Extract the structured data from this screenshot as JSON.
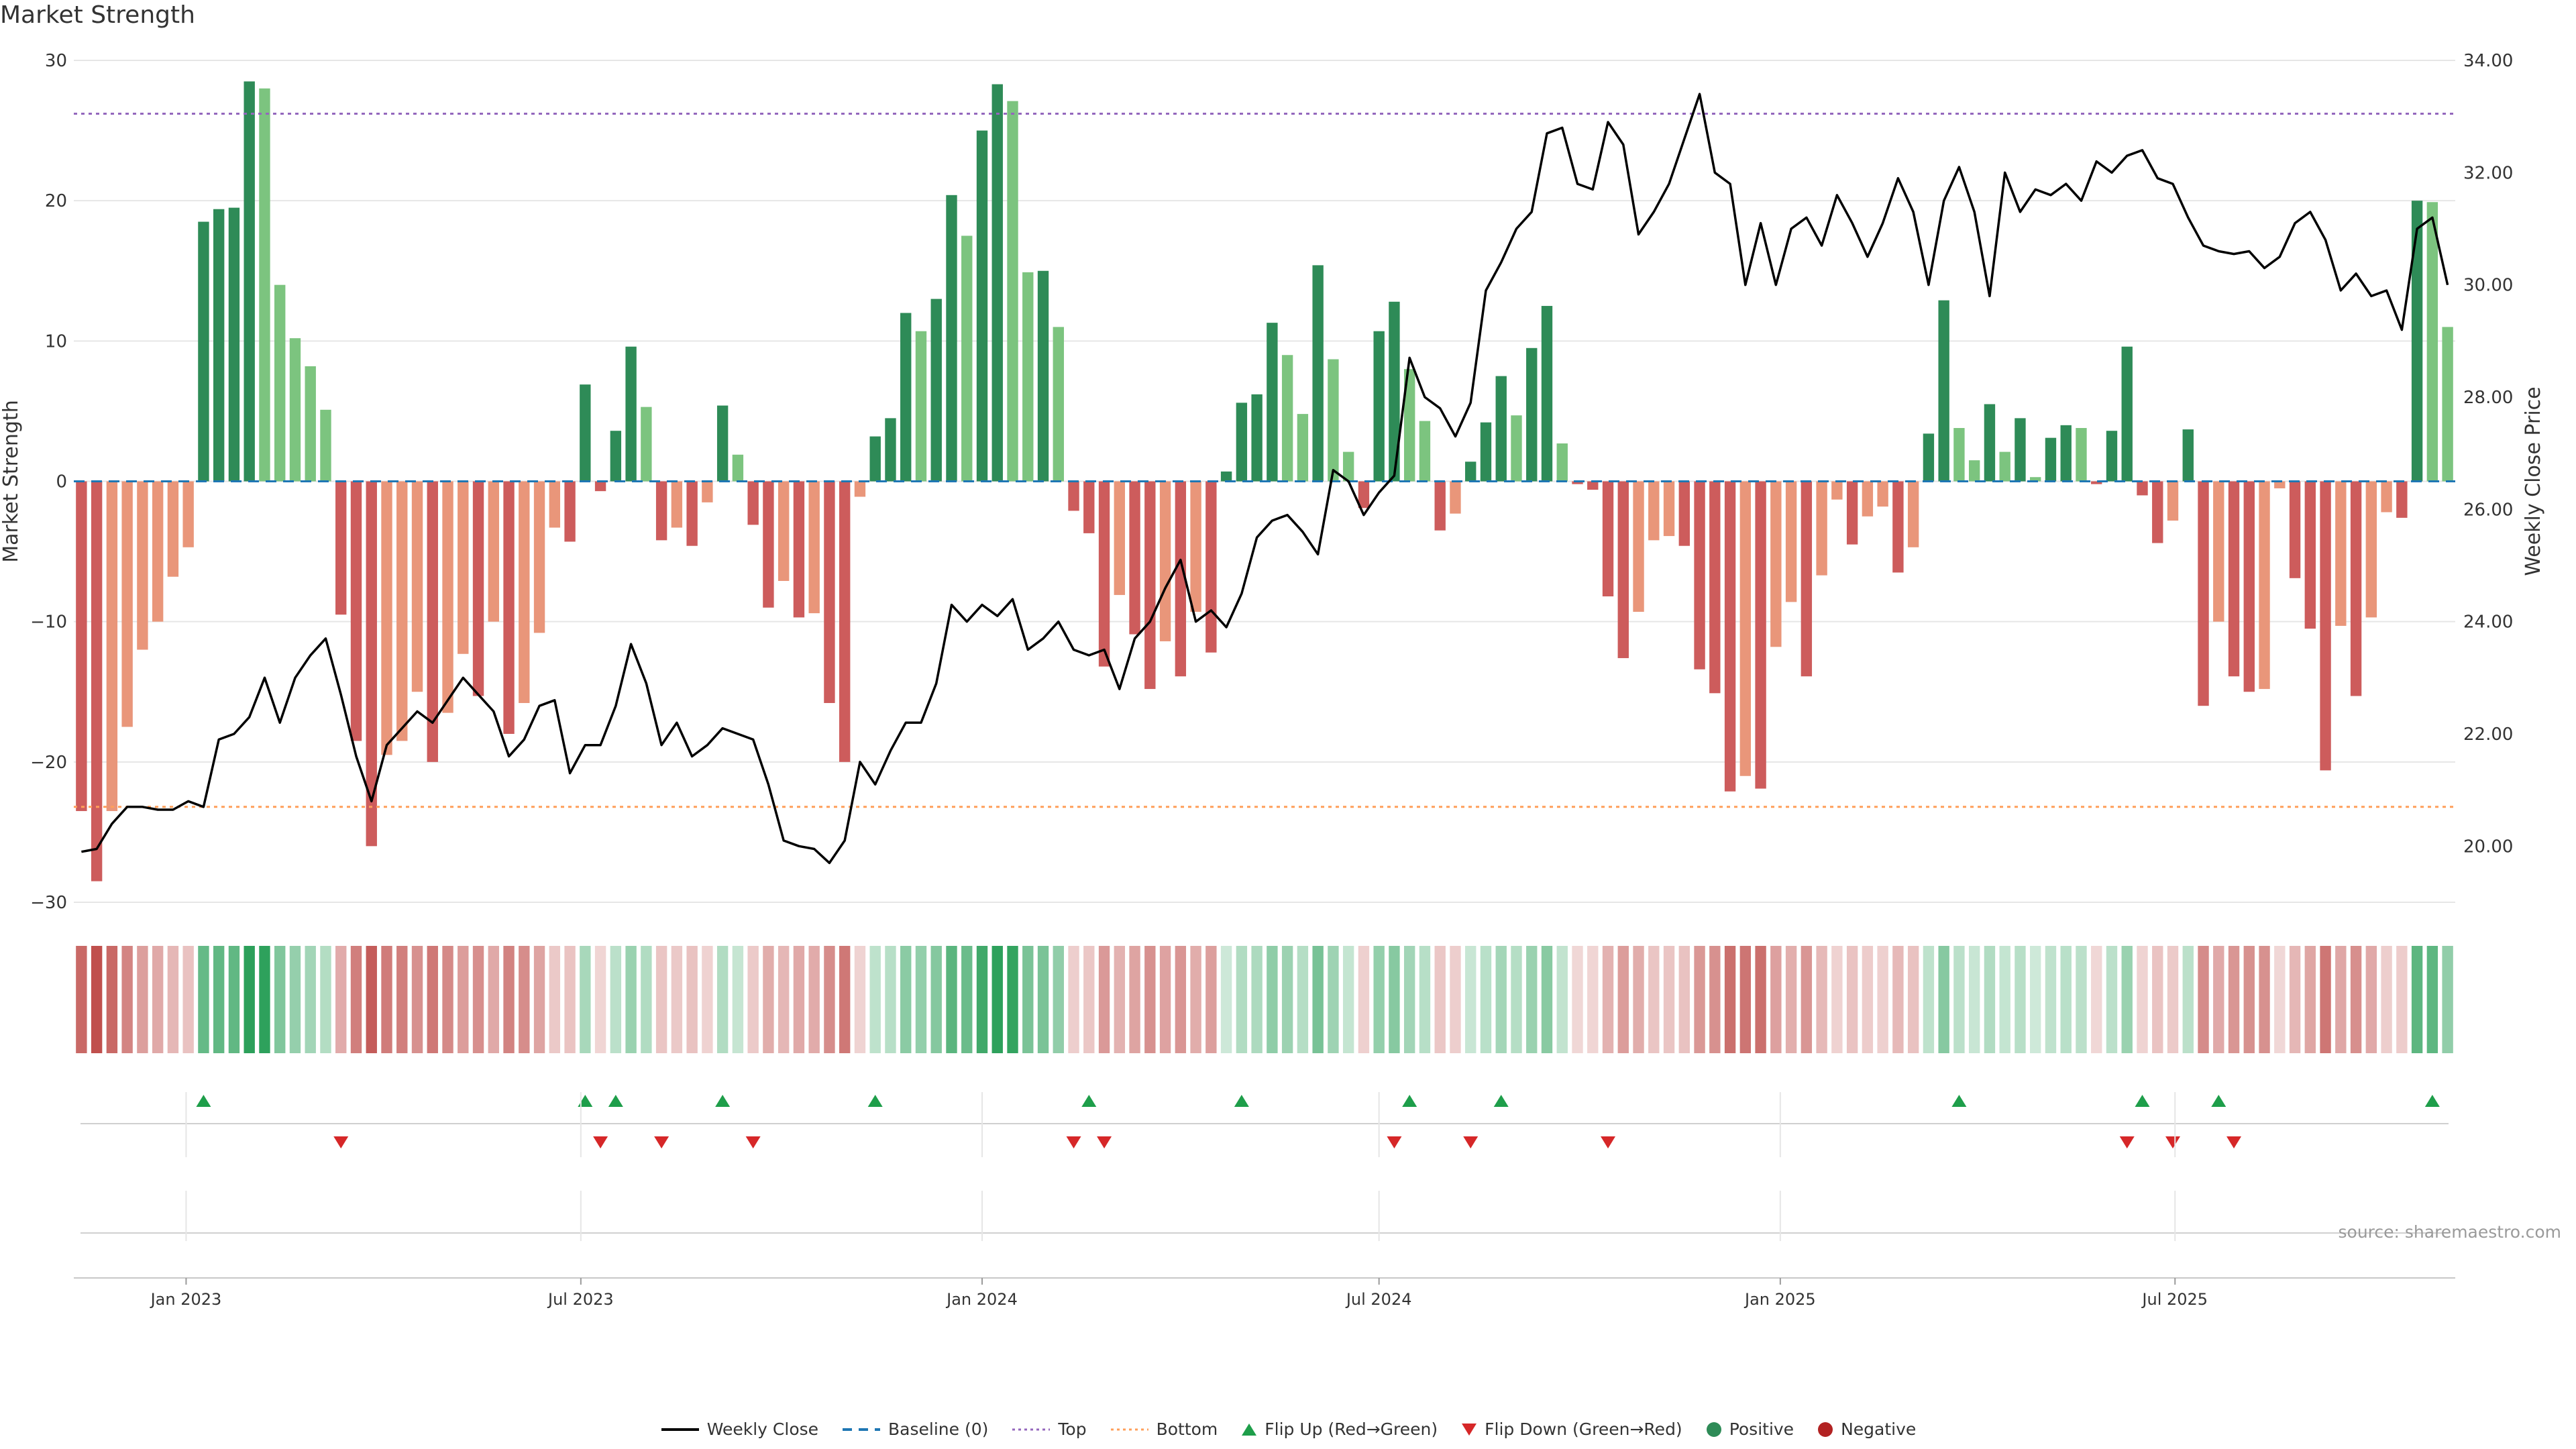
{
  "title": "Market Strength",
  "source_text": "source: sharemaestro.com",
  "colors": {
    "pos_dark": "#2e8b57",
    "pos_light": "#7cc47f",
    "neg_dark": "#cd5c5c",
    "neg_light": "#e9967a",
    "price_line": "#000000",
    "baseline": "#1f77b4",
    "top": "#9467bd",
    "bottom": "#ff9f5a",
    "flip_up": "#1e9e4a",
    "flip_down": "#d62728",
    "grid": "#e6e6e6",
    "heat_pos": "#2ca05a",
    "heat_neg": "#c0504d"
  },
  "chart_data": {
    "type": "bar",
    "title": "Market Strength",
    "ylabel": "Market Strength",
    "y2label": "Weekly Close Price",
    "ylim": [
      -30,
      30
    ],
    "y2lim": [
      19.0,
      34.0
    ],
    "y_ticks": [
      30,
      20,
      10,
      0,
      -10,
      -20,
      -30
    ],
    "y_tick_labels": [
      "30",
      "20",
      "10",
      "0",
      "−10",
      "−20",
      "−30"
    ],
    "y2_ticks": [
      34.0,
      32.0,
      30.0,
      28.0,
      26.0,
      24.0,
      22.0,
      20.0
    ],
    "y2_tick_labels": [
      "34.00",
      "32.00",
      "30.00",
      "28.00",
      "26.00",
      "24.00",
      "22.00",
      "20.00"
    ],
    "x_start": "2022-11-14",
    "x_ticks": [
      "2023-01-01",
      "2023-07-01",
      "2024-01-01",
      "2024-07-01",
      "2025-01-01",
      "2025-07-01"
    ],
    "x_tick_labels": [
      "Jan 2023",
      "Jul 2023",
      "Jan 2024",
      "Jul 2024",
      "Jan 2025",
      "Jul 2025"
    ],
    "top_line": 26.2,
    "bottom_line": -23.2,
    "series": [
      {
        "name": "Market Strength",
        "values": [
          -23.5,
          -28.5,
          -23.5,
          -17.5,
          -12,
          -10,
          -6.8,
          -4.7,
          18.5,
          19.4,
          19.5,
          28.5,
          28,
          14,
          10.2,
          8.2,
          5.1,
          -9.5,
          -18.5,
          -26,
          -19.5,
          -18.5,
          -15,
          -20,
          -16.5,
          -12.3,
          -15.3,
          -10,
          -18,
          -15.8,
          -10.8,
          -3.3,
          -4.3,
          6.9,
          -0.7,
          3.6,
          9.6,
          5.3,
          -4.2,
          -3.3,
          -4.6,
          -1.5,
          5.4,
          1.9,
          -3.1,
          -9,
          -7.1,
          -9.7,
          -9.4,
          -15.8,
          -20,
          -1.1,
          3.2,
          4.5,
          12,
          10.7,
          13,
          20.4,
          17.5,
          25,
          28.3,
          27.1,
          14.9,
          15,
          11,
          -2.1,
          -3.7,
          -13.2,
          -8.1,
          -10.9,
          -14.8,
          -11.4,
          -13.9,
          -9.3,
          -12.2,
          0.7,
          5.6,
          6.2,
          11.3,
          9,
          4.8,
          15.4,
          8.7,
          2.1,
          -1.9,
          10.7,
          12.8,
          8,
          4.3,
          -3.5,
          -2.3,
          1.4,
          4.2,
          7.5,
          4.7,
          9.5,
          12.5,
          2.7,
          -0.2,
          -0.6,
          -8.2,
          -12.6,
          -9.3,
          -4.2,
          -3.9,
          -4.6,
          -13.4,
          -15.1,
          -22.1,
          -21,
          -21.9,
          -11.8,
          -8.6,
          -13.9,
          -6.7,
          -1.3,
          -4.5,
          -2.5,
          -1.8,
          -6.5,
          -4.7,
          3.4,
          12.9,
          3.8,
          1.5,
          5.5,
          2.1,
          4.5,
          0.3,
          3.1,
          4,
          3.8,
          -0.2,
          3.6,
          9.6,
          -1,
          -4.4,
          -2.8,
          3.7,
          -16,
          -10,
          -13.9,
          -15,
          -14.8,
          -0.5,
          -6.9,
          -10.5,
          -20.6,
          -10.3,
          -15.3,
          -9.7,
          -2.2,
          -2.6,
          20,
          19.9,
          11
        ]
      },
      {
        "name": "Weekly Close",
        "values": [
          19.9,
          19.95,
          20.4,
          20.7,
          20.7,
          20.65,
          20.65,
          20.8,
          20.7,
          21.9,
          22,
          22.3,
          23,
          22.2,
          23,
          23.4,
          23.7,
          22.7,
          21.6,
          20.8,
          21.8,
          22.1,
          22.4,
          22.2,
          22.6,
          23,
          22.7,
          22.4,
          21.6,
          21.9,
          22.5,
          22.6,
          21.3,
          21.8,
          21.8,
          22.5,
          23.6,
          22.9,
          21.8,
          22.2,
          21.6,
          21.8,
          22.1,
          22,
          21.9,
          21.1,
          20.1,
          20.0,
          19.95,
          19.7,
          20.1,
          21.5,
          21.1,
          21.7,
          22.2,
          22.2,
          22.9,
          24.3,
          24.0,
          24.3,
          24.1,
          24.4,
          23.5,
          23.7,
          24.0,
          23.5,
          23.4,
          23.5,
          22.8,
          23.7,
          24.0,
          24.6,
          25.1,
          24.0,
          24.2,
          23.9,
          24.5,
          25.5,
          25.8,
          25.9,
          25.6,
          25.2,
          26.7,
          26.5,
          25.9,
          26.3,
          26.6,
          28.7,
          28.0,
          27.8,
          27.3,
          27.9,
          29.9,
          30.4,
          31.0,
          31.3,
          32.7,
          32.8,
          31.8,
          31.7,
          32.9,
          32.5,
          30.9,
          31.3,
          31.8,
          32.6,
          33.4,
          32.0,
          31.8,
          30.0,
          31.1,
          30.0,
          31.0,
          31.2,
          30.7,
          31.6,
          31.1,
          30.5,
          31.1,
          31.9,
          31.3,
          30.0,
          31.5,
          32.1,
          31.3,
          29.8,
          32.0,
          31.3,
          31.7,
          31.6,
          31.8,
          31.5,
          32.2,
          32.0,
          32.3,
          32.4,
          31.9,
          31.8,
          31.2,
          30.7,
          30.6,
          30.55,
          30.6,
          30.3,
          30.5,
          31.1,
          31.3,
          30.8,
          29.9,
          30.2,
          29.8,
          29.9,
          29.2,
          31.0,
          31.2,
          30.0
        ]
      }
    ],
    "flip_up_weeks": [
      8,
      33,
      35,
      42,
      52,
      66,
      76,
      87,
      93,
      123,
      135,
      140,
      154
    ],
    "flip_down_weeks": [
      17,
      34,
      38,
      44,
      65,
      67,
      86,
      91,
      100,
      134,
      137,
      141
    ],
    "legend": [
      {
        "label": "Weekly Close",
        "kind": "line",
        "color": "#000000"
      },
      {
        "label": "Baseline (0)",
        "kind": "dash",
        "color": "#1f77b4"
      },
      {
        "label": "Top",
        "kind": "dot",
        "color": "#9467bd"
      },
      {
        "label": "Bottom",
        "kind": "dot",
        "color": "#ff9f5a"
      },
      {
        "label": "Flip Up (Red→Green)",
        "kind": "up",
        "color": "#1e9e4a"
      },
      {
        "label": "Flip Down (Green→Red)",
        "kind": "down",
        "color": "#d62728"
      },
      {
        "label": "Positive",
        "kind": "circle",
        "color": "#2e8b57"
      },
      {
        "label": "Negative",
        "kind": "circle",
        "color": "#b22222"
      }
    ]
  }
}
